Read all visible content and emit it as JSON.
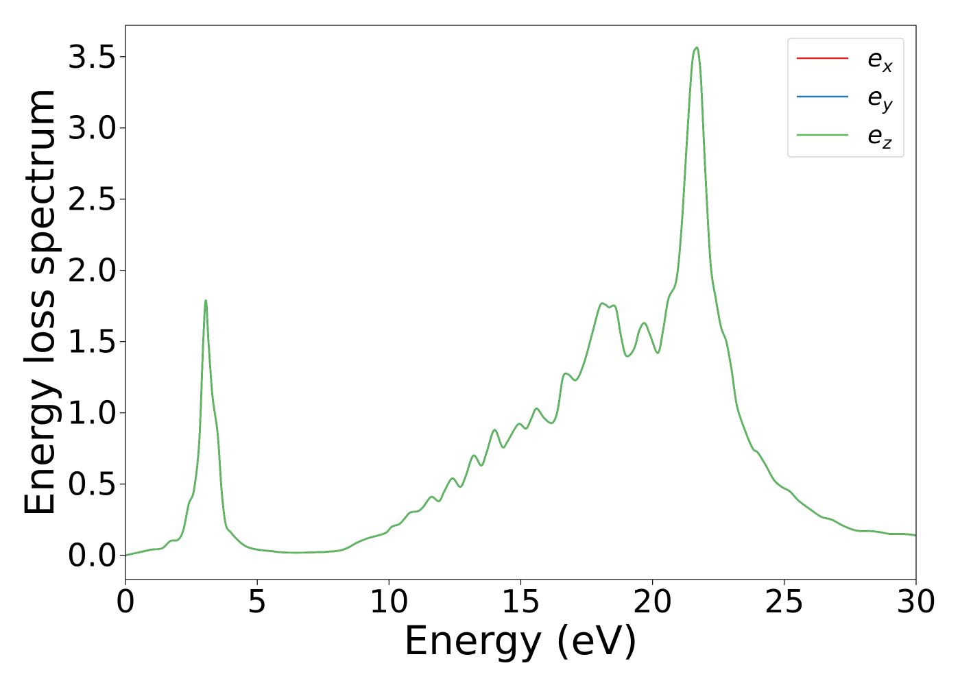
{
  "chart_data": {
    "type": "line",
    "title": "",
    "xlabel": "Energy (eV)",
    "ylabel": "Energy loss spectrum",
    "xlim": [
      0,
      30
    ],
    "ylim": [
      -0.17,
      3.72
    ],
    "xticks": [
      0,
      5,
      10,
      15,
      20,
      25,
      30
    ],
    "xtick_labels": [
      "0",
      "5",
      "10",
      "15",
      "20",
      "25",
      "30"
    ],
    "yticks": [
      0.0,
      0.5,
      1.0,
      1.5,
      2.0,
      2.5,
      3.0,
      3.5
    ],
    "ytick_labels": [
      "0.0",
      "0.5",
      "1.0",
      "1.5",
      "2.0",
      "2.5",
      "3.0",
      "3.5"
    ],
    "grid": false,
    "legend_position": "top-right",
    "x": [
      0.0,
      0.5,
      1.0,
      1.4,
      1.7,
      2.0,
      2.2,
      2.4,
      2.6,
      2.8,
      2.95,
      3.05,
      3.15,
      3.3,
      3.5,
      3.65,
      3.8,
      4.0,
      4.3,
      4.6,
      5.0,
      5.5,
      6.0,
      7.0,
      8.0,
      8.4,
      8.8,
      9.2,
      9.6,
      9.9,
      10.1,
      10.4,
      10.6,
      10.8,
      11.1,
      11.3,
      11.6,
      11.9,
      12.1,
      12.4,
      12.7,
      12.9,
      13.2,
      13.5,
      13.7,
      14.0,
      14.3,
      14.5,
      14.9,
      15.2,
      15.4,
      15.6,
      15.9,
      16.2,
      16.4,
      16.6,
      16.8,
      17.1,
      17.4,
      17.7,
      18.0,
      18.2,
      18.35,
      18.6,
      18.8,
      19.0,
      19.3,
      19.5,
      19.7,
      19.9,
      20.2,
      20.4,
      20.6,
      20.9,
      21.1,
      21.3,
      21.5,
      21.65,
      21.75,
      21.85,
      22.0,
      22.2,
      22.4,
      22.6,
      22.8,
      23.0,
      23.2,
      23.5,
      23.8,
      24.0,
      24.3,
      24.6,
      24.9,
      25.2,
      25.5,
      25.7,
      26.0,
      26.4,
      26.8,
      27.2,
      27.6,
      27.9,
      28.3,
      28.7,
      29.0,
      29.5,
      30.0
    ],
    "series": [
      {
        "name": "e_x",
        "color": "#d62728",
        "values": [
          0.0,
          0.02,
          0.04,
          0.05,
          0.1,
          0.11,
          0.18,
          0.36,
          0.46,
          0.8,
          1.5,
          1.79,
          1.5,
          1.12,
          0.85,
          0.45,
          0.22,
          0.16,
          0.1,
          0.06,
          0.04,
          0.03,
          0.02,
          0.02,
          0.03,
          0.05,
          0.09,
          0.12,
          0.14,
          0.16,
          0.2,
          0.22,
          0.26,
          0.3,
          0.31,
          0.34,
          0.41,
          0.38,
          0.45,
          0.54,
          0.48,
          0.55,
          0.7,
          0.63,
          0.72,
          0.88,
          0.76,
          0.8,
          0.92,
          0.89,
          0.96,
          1.03,
          0.96,
          0.93,
          1.02,
          1.25,
          1.27,
          1.23,
          1.35,
          1.55,
          1.75,
          1.76,
          1.74,
          1.74,
          1.54,
          1.4,
          1.45,
          1.58,
          1.63,
          1.55,
          1.42,
          1.58,
          1.8,
          1.93,
          2.3,
          2.9,
          3.45,
          3.56,
          3.52,
          3.3,
          2.7,
          2.05,
          1.8,
          1.6,
          1.5,
          1.3,
          1.05,
          0.88,
          0.75,
          0.72,
          0.63,
          0.53,
          0.48,
          0.45,
          0.39,
          0.36,
          0.32,
          0.27,
          0.25,
          0.21,
          0.18,
          0.17,
          0.17,
          0.16,
          0.15,
          0.15,
          0.14
        ]
      },
      {
        "name": "e_y",
        "color": "#1f77b4",
        "values": [
          0.0,
          0.02,
          0.04,
          0.05,
          0.1,
          0.11,
          0.18,
          0.36,
          0.46,
          0.8,
          1.5,
          1.79,
          1.5,
          1.12,
          0.85,
          0.45,
          0.22,
          0.16,
          0.1,
          0.06,
          0.04,
          0.03,
          0.02,
          0.02,
          0.03,
          0.05,
          0.09,
          0.12,
          0.14,
          0.16,
          0.2,
          0.22,
          0.26,
          0.3,
          0.31,
          0.34,
          0.41,
          0.38,
          0.45,
          0.54,
          0.48,
          0.55,
          0.7,
          0.63,
          0.72,
          0.88,
          0.76,
          0.8,
          0.92,
          0.89,
          0.96,
          1.03,
          0.96,
          0.93,
          1.02,
          1.25,
          1.27,
          1.23,
          1.35,
          1.55,
          1.75,
          1.76,
          1.74,
          1.74,
          1.54,
          1.4,
          1.45,
          1.58,
          1.63,
          1.55,
          1.42,
          1.58,
          1.8,
          1.93,
          2.3,
          2.9,
          3.45,
          3.56,
          3.52,
          3.3,
          2.7,
          2.05,
          1.8,
          1.6,
          1.5,
          1.3,
          1.05,
          0.88,
          0.75,
          0.72,
          0.63,
          0.53,
          0.48,
          0.45,
          0.39,
          0.36,
          0.32,
          0.27,
          0.25,
          0.21,
          0.18,
          0.17,
          0.17,
          0.16,
          0.15,
          0.15,
          0.14
        ]
      },
      {
        "name": "e_z",
        "color": "#5cb85c",
        "values": [
          0.0,
          0.02,
          0.04,
          0.05,
          0.1,
          0.11,
          0.18,
          0.36,
          0.46,
          0.8,
          1.5,
          1.79,
          1.5,
          1.12,
          0.85,
          0.45,
          0.22,
          0.16,
          0.1,
          0.06,
          0.04,
          0.03,
          0.02,
          0.02,
          0.03,
          0.05,
          0.09,
          0.12,
          0.14,
          0.16,
          0.2,
          0.22,
          0.26,
          0.3,
          0.31,
          0.34,
          0.41,
          0.38,
          0.45,
          0.54,
          0.48,
          0.55,
          0.7,
          0.63,
          0.72,
          0.88,
          0.76,
          0.8,
          0.92,
          0.89,
          0.96,
          1.03,
          0.96,
          0.93,
          1.02,
          1.25,
          1.27,
          1.23,
          1.35,
          1.55,
          1.75,
          1.76,
          1.74,
          1.74,
          1.54,
          1.4,
          1.45,
          1.58,
          1.63,
          1.55,
          1.42,
          1.58,
          1.8,
          1.93,
          2.3,
          2.9,
          3.45,
          3.56,
          3.52,
          3.3,
          2.7,
          2.05,
          1.8,
          1.6,
          1.5,
          1.3,
          1.05,
          0.88,
          0.75,
          0.72,
          0.63,
          0.53,
          0.48,
          0.45,
          0.39,
          0.36,
          0.32,
          0.27,
          0.25,
          0.21,
          0.18,
          0.17,
          0.17,
          0.16,
          0.15,
          0.15,
          0.14
        ]
      }
    ],
    "legend": [
      {
        "symbol": "e",
        "sub": "x",
        "color": "#d62728"
      },
      {
        "symbol": "e",
        "sub": "y",
        "color": "#1f77b4"
      },
      {
        "symbol": "e",
        "sub": "z",
        "color": "#5cb85c"
      }
    ]
  }
}
